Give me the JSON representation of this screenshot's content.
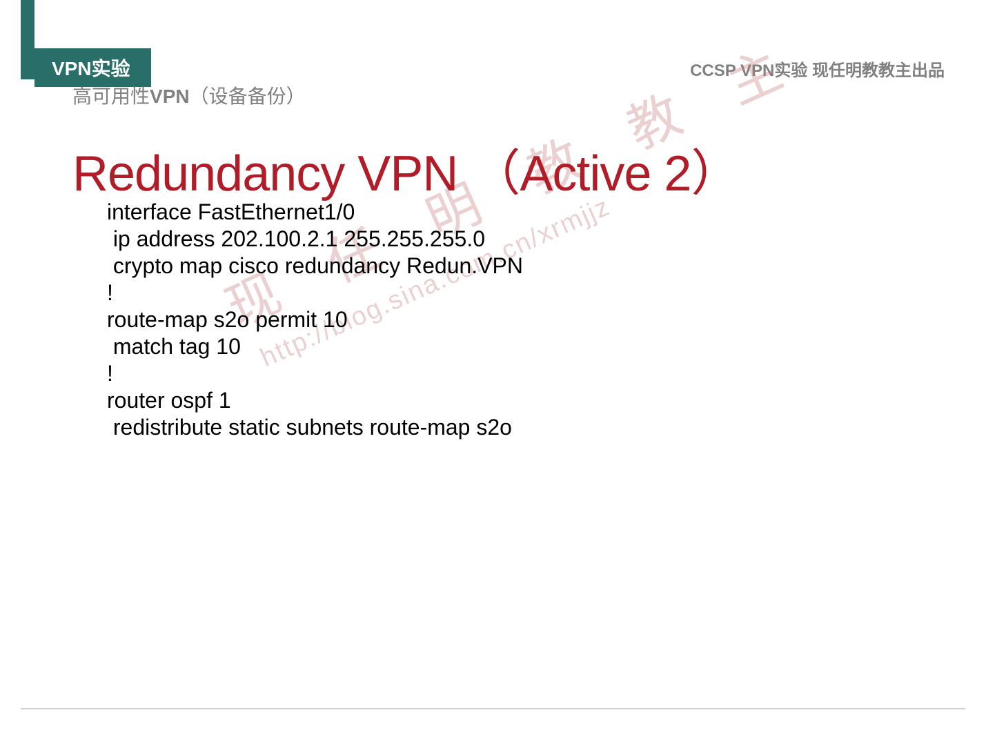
{
  "header": {
    "category": "VPN实验",
    "subtitle_prefix": "高可用性",
    "subtitle_bold": "VPN",
    "subtitle_suffix": "（设备备份）",
    "top_right": "CCSP VPN实验 现任明教教主出品"
  },
  "main_title": "Redundancy VPN （Active 2）",
  "code": {
    "lines": [
      "interface FastEthernet1/0",
      " ip address 202.100.2.1 255.255.255.0",
      " crypto map cisco redundancy Redun.VPN",
      "!",
      "route-map s2o permit 10",
      " match tag 10",
      "!",
      "router ospf 1",
      " redistribute static subnets route-map s2o"
    ]
  },
  "watermark": {
    "cn": "现 任 明 教 教 主",
    "url": "http://blog.sina.com.cn/xrmjjz"
  },
  "colors": {
    "accent": "#2a6e6a",
    "title": "#b01d28",
    "gray": "#808080",
    "watermark": "#c47a7a"
  }
}
